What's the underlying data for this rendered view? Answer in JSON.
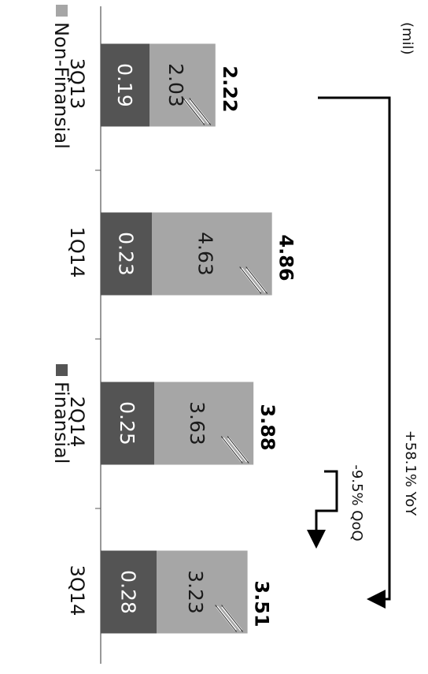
{
  "chart_data": {
    "type": "bar",
    "stacked": true,
    "orientation": "horizontal",
    "unit_label": "(mil)",
    "categories": [
      "3Q13",
      "1Q14",
      "2Q14",
      "3Q14"
    ],
    "series": [
      {
        "name": "Finansial",
        "values": [
          0.19,
          0.23,
          0.25,
          0.28
        ],
        "color": "#545454"
      },
      {
        "name": "Non-Finansial",
        "values": [
          2.03,
          4.63,
          3.63,
          3.23
        ],
        "color": "#a6a6a6"
      }
    ],
    "totals": [
      "2.22",
      "4.86",
      "3.88",
      "3.51"
    ],
    "value_labels": {
      "Finansial": [
        "0.19",
        "0.23",
        "0.25",
        "0.28"
      ],
      "Non-Finansial": [
        "2.03",
        "4.63",
        "3.63",
        "3.23"
      ]
    },
    "axis_break": true,
    "annotations": {
      "yoy": "+58.1% YoY",
      "qoq": "-9.5% QoQ"
    },
    "legend_placement": "bottom",
    "legend_order": [
      "Non-Finansial",
      "Finansial"
    ]
  }
}
